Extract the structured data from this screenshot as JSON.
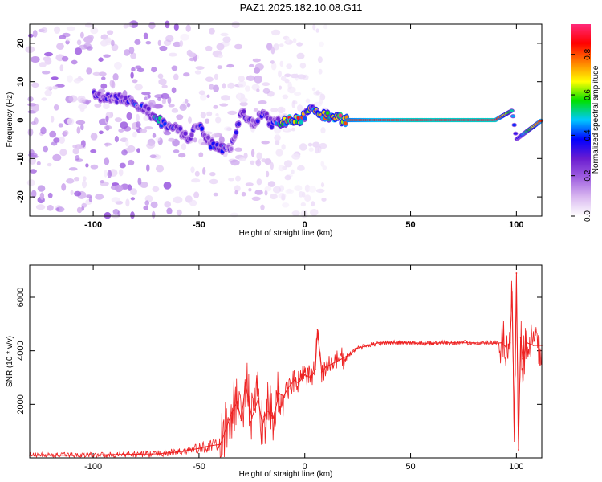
{
  "title": "PAZ1.2025.182.10.08.G11",
  "chart_data": [
    {
      "type": "heatmap",
      "xlabel": "Height of straight line (km)",
      "ylabel": "Frequency (Hz)",
      "xlim": [
        -130,
        112
      ],
      "ylim": [
        -25,
        25
      ],
      "xticks": [
        "-100",
        "-50",
        "0",
        "50",
        "100"
      ],
      "yticks": [
        "-20",
        "-10",
        "0",
        "10",
        "20"
      ],
      "colorbar_label": "Normalized spectral amplitude",
      "colorbar_ticks": [
        "0.0",
        "0.2",
        "0.4",
        "0.6",
        "0.8"
      ],
      "colorbar_range": [
        0,
        0.95
      ],
      "colormap": [
        "#ffffff",
        "#d9b8f0",
        "#a060e0",
        "#6a1cd0",
        "#0000ff",
        "#00c8ff",
        "#00e000",
        "#ffff00",
        "#ff8000",
        "#ff0000",
        "#ff2a7a"
      ],
      "ridge": [
        {
          "x": -100,
          "freq": 6.5,
          "amp": 0.25
        },
        {
          "x": -93,
          "freq": 6.0,
          "amp": 0.3
        },
        {
          "x": -85,
          "freq": 5.5,
          "amp": 0.25
        },
        {
          "x": -80,
          "freq": 4.0,
          "amp": 0.35
        },
        {
          "x": -75,
          "freq": 3.0,
          "amp": 0.3
        },
        {
          "x": -70,
          "freq": 0.0,
          "amp": 0.45
        },
        {
          "x": -65,
          "freq": -1.5,
          "amp": 0.35
        },
        {
          "x": -60,
          "freq": -2.5,
          "amp": 0.3
        },
        {
          "x": -55,
          "freq": -5.0,
          "amp": 0.25
        },
        {
          "x": -50,
          "freq": -1.0,
          "amp": 0.3
        },
        {
          "x": -45,
          "freq": -6.0,
          "amp": 0.3
        },
        {
          "x": -40,
          "freq": -7.5,
          "amp": 0.35
        },
        {
          "x": -35,
          "freq": -7.0,
          "amp": 0.3
        },
        {
          "x": -30,
          "freq": 2.0,
          "amp": 0.3
        },
        {
          "x": -25,
          "freq": -1.0,
          "amp": 0.25
        },
        {
          "x": -20,
          "freq": 1.5,
          "amp": 0.3
        },
        {
          "x": -15,
          "freq": -1.0,
          "amp": 0.35
        },
        {
          "x": -12,
          "freq": -0.5,
          "amp": 0.45
        },
        {
          "x": -8,
          "freq": 0.0,
          "amp": 0.7
        },
        {
          "x": -3,
          "freq": 0.0,
          "amp": 0.75
        },
        {
          "x": 0,
          "freq": 1.0,
          "amp": 0.6
        },
        {
          "x": 3,
          "freq": 3.0,
          "amp": 0.55
        },
        {
          "x": 6,
          "freq": 2.0,
          "amp": 0.6
        },
        {
          "x": 10,
          "freq": 1.0,
          "amp": 0.65
        },
        {
          "x": 15,
          "freq": 0.5,
          "amp": 0.7
        },
        {
          "x": 20,
          "freq": 0.0,
          "amp": 0.8
        },
        {
          "x": 30,
          "freq": 0.0,
          "amp": 0.85
        },
        {
          "x": 50,
          "freq": 0.0,
          "amp": 0.9
        },
        {
          "x": 70,
          "freq": 0.0,
          "amp": 0.9
        },
        {
          "x": 90,
          "freq": 0.0,
          "amp": 0.9
        },
        {
          "x": 98,
          "freq": 2.5,
          "amp": 0.5
        },
        {
          "x": 100,
          "freq": -5.0,
          "amp": 0.3
        },
        {
          "x": 112,
          "freq": 0.0,
          "amp": 0.85
        }
      ]
    },
    {
      "type": "line",
      "xlabel": "Height of straight line (km)",
      "ylabel": "SNR (10 * v/v)",
      "xlim": [
        -130,
        112
      ],
      "ylim": [
        0,
        7200
      ],
      "xticks": [
        "-100",
        "-50",
        "0",
        "50",
        "100"
      ],
      "yticks": [
        "2000",
        "4000",
        "6000"
      ],
      "color": "#ee2222",
      "series": [
        {
          "x": [
            -130,
            -110,
            -90,
            -70,
            -60,
            -50,
            -45,
            -40,
            -38,
            -35,
            -32,
            -30,
            -28,
            -25,
            -22,
            -20,
            -18,
            -15,
            -12,
            -10,
            -8,
            -5,
            -3,
            0,
            3,
            5,
            6,
            8,
            10,
            15,
            20,
            25,
            30,
            35,
            40,
            50,
            60,
            70,
            80,
            90,
            93,
            95,
            97,
            98,
            99,
            100,
            101,
            102,
            103,
            105,
            108,
            110,
            112
          ],
          "y": [
            100,
            100,
            120,
            150,
            220,
            350,
            450,
            500,
            900,
            1600,
            2100,
            1400,
            2800,
            1500,
            2200,
            1200,
            1800,
            1500,
            2400,
            2300,
            2600,
            2900,
            2800,
            3100,
            3000,
            3300,
            4800,
            3200,
            3400,
            3600,
            3800,
            4100,
            4200,
            4300,
            4300,
            4300,
            4280,
            4300,
            4300,
            4280,
            4300,
            4150,
            4300,
            6200,
            1000,
            6900,
            300,
            4500,
            3700,
            4300,
            4200,
            4200,
            4200
          ]
        }
      ]
    }
  ]
}
